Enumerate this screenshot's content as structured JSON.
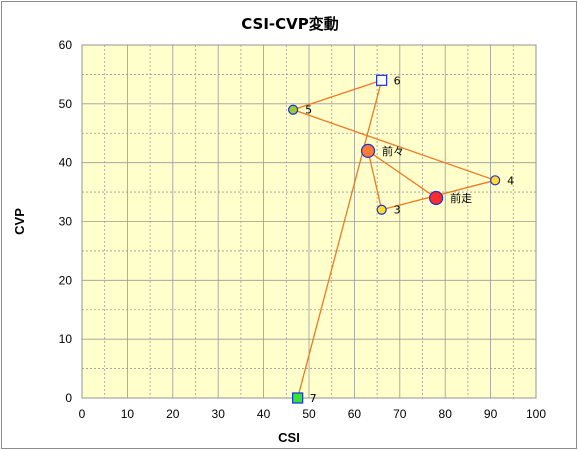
{
  "chart_data": {
    "type": "scatter",
    "title": "CSI-CVP変動",
    "xlabel": "CSI",
    "ylabel": "CVP",
    "xlim": [
      0,
      100
    ],
    "ylim": [
      0,
      60
    ],
    "x_ticks": [
      0,
      10,
      20,
      30,
      40,
      50,
      60,
      70,
      80,
      90,
      100
    ],
    "y_ticks": [
      0,
      10,
      20,
      30,
      40,
      50,
      60
    ],
    "grid": true,
    "legend": "none",
    "colors": {
      "plot_bg": "#ffffcc",
      "grid": "#9a9a9a",
      "line": "#f07820",
      "marker_yellow": "#ffdd33",
      "marker_red": "#ff2a2a",
      "marker_orange": "#ff7a33",
      "marker_green": "#33e633",
      "marker_olive": "#9ccc33",
      "marker_white": "#ffffff",
      "marker_border": "#1a2fd8"
    },
    "points": [
      {
        "label": "7",
        "x": 47.5,
        "y": 0,
        "marker": "square",
        "fill": "marker_green"
      },
      {
        "label": "6",
        "x": 66,
        "y": 54,
        "marker": "square",
        "fill": "marker_white"
      },
      {
        "label": "5",
        "x": 46.5,
        "y": 49,
        "marker": "circle",
        "fill": "marker_olive"
      },
      {
        "label": "4",
        "x": 91,
        "y": 37,
        "marker": "circle",
        "fill": "marker_yellow"
      },
      {
        "label": "3",
        "x": 66,
        "y": 32,
        "marker": "circle",
        "fill": "marker_yellow"
      },
      {
        "label": "前々",
        "x": 63,
        "y": 42,
        "marker": "circle-large",
        "fill": "marker_orange"
      },
      {
        "label": "前走",
        "x": 78,
        "y": 34,
        "marker": "circle-large",
        "fill": "marker_red"
      }
    ]
  }
}
